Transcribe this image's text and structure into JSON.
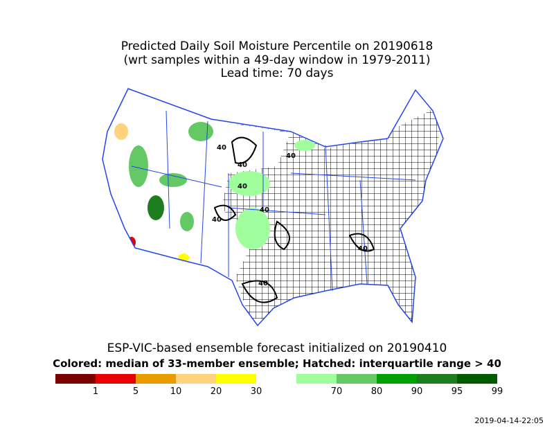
{
  "header": {
    "title": [
      "Predicted Daily Soil Moisture Percentile on 20190618",
      "(wrt samples within a 49-day window in 1979-2011)",
      "Lead time: 70 days"
    ]
  },
  "map": {
    "contour_labels": [
      40,
      40,
      40,
      40,
      40,
      40,
      40,
      40
    ]
  },
  "footer": {
    "lines": [
      "ESP-VIC-based ensemble forecast initialized on 20190410",
      "Colored: median of 33-member ensemble; Hatched: interquartile range > 40"
    ]
  },
  "legend": {
    "colors": [
      "#7a0000",
      "#e60000",
      "#e89c00",
      "#ffd27f",
      "#ffff00",
      "#a0ff9c",
      "#64c864",
      "#00a000",
      "#1e7d1e",
      "#005a00"
    ],
    "labels": [
      1,
      5,
      10,
      20,
      30,
      70,
      80,
      90,
      95,
      99
    ]
  },
  "timestamp": "2019-04-14-22:05"
}
